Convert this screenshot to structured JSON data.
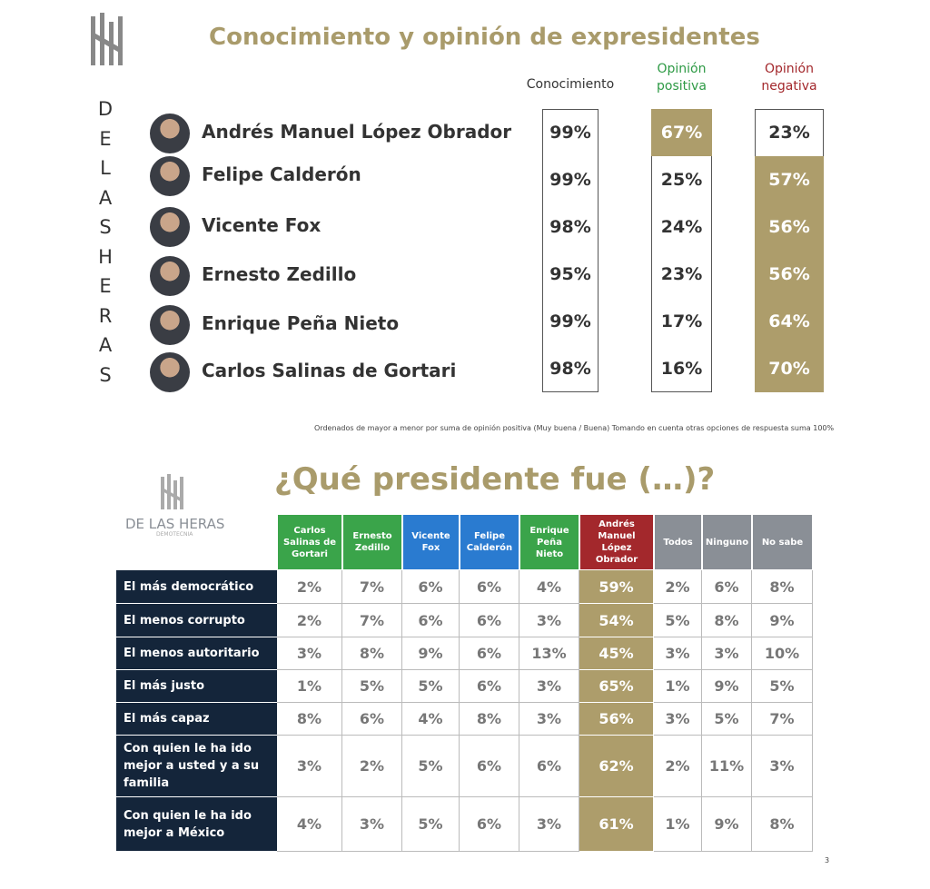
{
  "top": {
    "title": "Conocimiento y opinión de expresidentes",
    "brand_letters": [
      "D",
      "E",
      "L",
      "A",
      "S",
      "H",
      "E",
      "R",
      "A",
      "S"
    ],
    "columns": [
      {
        "label": "Conocimiento",
        "color": "#333333"
      },
      {
        "label": "Opinión positiva",
        "color": "#2e9a45"
      },
      {
        "label": "Opinión negativa",
        "color": "#a3282c"
      }
    ],
    "rows": [
      {
        "name": "Andrés Manuel López Obrador",
        "values": [
          "99%",
          "67%",
          "23%"
        ]
      },
      {
        "name": "Felipe Calderón",
        "values": [
          "99%",
          "25%",
          "57%"
        ]
      },
      {
        "name": "Vicente Fox",
        "values": [
          "98%",
          "24%",
          "56%"
        ]
      },
      {
        "name": "Ernesto Zedillo",
        "values": [
          "95%",
          "23%",
          "56%"
        ]
      },
      {
        "name": "Enrique Peña Nieto",
        "values": [
          "99%",
          "17%",
          "64%"
        ]
      },
      {
        "name": "Carlos Salinas de Gortari",
        "values": [
          "98%",
          "16%",
          "70%"
        ]
      }
    ],
    "note": "Ordenados de mayor a menor por suma de opinión positiva (Muy buena / Buena) Tomando en cuenta otras opciones de respuesta suma 100%"
  },
  "bottom": {
    "title": "¿Qué presidente fue (…)?",
    "brand": "DE LAS HERAS",
    "brand_sub": "DEMOTECNIA",
    "columns": [
      {
        "label": "Carlos Salinas de Gortari",
        "color": "#3aa44a"
      },
      {
        "label": "Ernesto Zedillo",
        "color": "#3aa44a"
      },
      {
        "label": "Vicente Fox",
        "color": "#2a7bd0"
      },
      {
        "label": "Felipe Calderón",
        "color": "#2a7bd0"
      },
      {
        "label": "Enrique Peña Nieto",
        "color": "#3aa44a"
      },
      {
        "label": "Andrés Manuel López Obrador",
        "color": "#a3282c"
      },
      {
        "label": "Todos",
        "color": "#8a8f96"
      },
      {
        "label": "Ninguno",
        "color": "#8a8f96"
      },
      {
        "label": "No sabe",
        "color": "#8a8f96"
      }
    ],
    "rows": [
      {
        "label": "El más democrático",
        "values": [
          "2%",
          "7%",
          "6%",
          "6%",
          "4%",
          "59%",
          "2%",
          "6%",
          "8%"
        ]
      },
      {
        "label": "El menos corrupto",
        "values": [
          "2%",
          "7%",
          "6%",
          "6%",
          "3%",
          "54%",
          "5%",
          "8%",
          "9%"
        ]
      },
      {
        "label": "El menos autoritario",
        "values": [
          "3%",
          "8%",
          "9%",
          "6%",
          "13%",
          "45%",
          "3%",
          "3%",
          "10%"
        ]
      },
      {
        "label": "El más justo",
        "values": [
          "1%",
          "5%",
          "5%",
          "6%",
          "3%",
          "65%",
          "1%",
          "9%",
          "5%"
        ]
      },
      {
        "label": "El más capaz",
        "values": [
          "8%",
          "6%",
          "4%",
          "8%",
          "3%",
          "56%",
          "3%",
          "5%",
          "7%"
        ]
      },
      {
        "label": "Con quien le ha ido mejor a usted y a su familia",
        "values": [
          "3%",
          "2%",
          "5%",
          "6%",
          "6%",
          "62%",
          "2%",
          "11%",
          "3%"
        ]
      },
      {
        "label": "Con quien le ha ido mejor a México",
        "values": [
          "4%",
          "3%",
          "5%",
          "6%",
          "3%",
          "61%",
          "1%",
          "9%",
          "8%"
        ]
      }
    ]
  },
  "page_number": "3"
}
